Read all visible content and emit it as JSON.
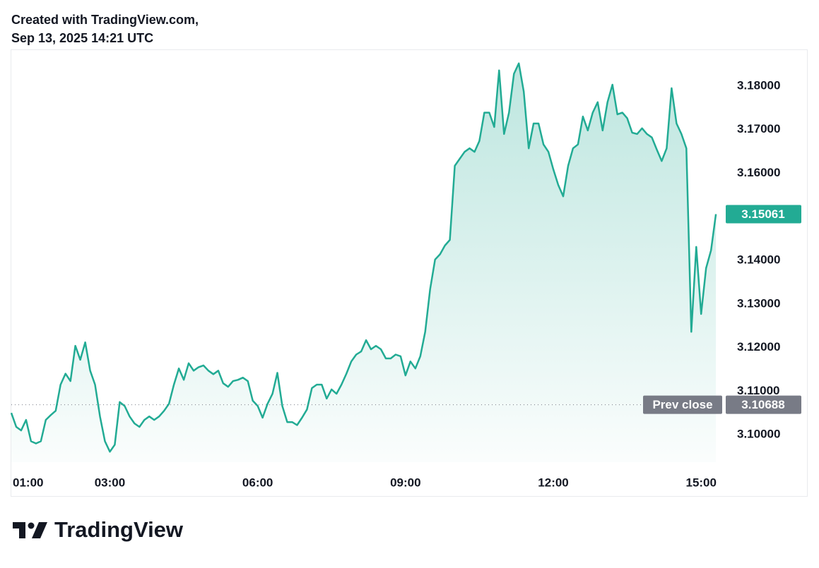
{
  "chart_data": {
    "type": "area",
    "title": "Created with TradingView.com,",
    "subtitle": "Sep 13, 2025 14:21 UTC",
    "color": "#22ab94",
    "x": [
      1.0,
      1.1,
      1.2,
      1.3,
      1.4,
      1.5,
      1.6,
      1.7,
      1.8,
      1.9,
      2.0,
      2.1,
      2.2,
      2.3,
      2.4,
      2.5,
      2.6,
      2.7,
      2.8,
      2.9,
      3.0,
      3.1,
      3.2,
      3.3,
      3.4,
      3.5,
      3.6,
      3.7,
      3.8,
      3.9,
      4.0,
      4.1,
      4.2,
      4.3,
      4.4,
      4.5,
      4.6,
      4.7,
      4.8,
      4.9,
      5.0,
      5.1,
      5.2,
      5.3,
      5.4,
      5.5,
      5.6,
      5.7,
      5.8,
      5.9,
      6.0,
      6.1,
      6.2,
      6.3,
      6.4,
      6.5,
      6.6,
      6.7,
      6.8,
      6.9,
      7.0,
      7.1,
      7.2,
      7.3,
      7.4,
      7.5,
      7.6,
      7.7,
      7.8,
      7.9,
      8.0,
      8.1,
      8.2,
      8.3,
      8.4,
      8.5,
      8.6,
      8.7,
      8.8,
      8.9,
      9.0,
      9.1,
      9.2,
      9.3,
      9.4,
      9.5,
      9.6,
      9.7,
      9.8,
      9.9,
      10.0,
      10.1,
      10.2,
      10.3,
      10.4,
      10.5,
      10.6,
      10.7,
      10.8,
      10.9,
      11.0,
      11.1,
      11.2,
      11.3,
      11.4,
      11.5,
      11.6,
      11.7,
      11.8,
      11.9,
      12.0,
      12.1,
      12.2,
      12.3,
      12.4,
      12.5,
      12.6,
      12.7,
      12.8,
      12.9,
      13.0,
      13.1,
      13.2,
      13.3,
      13.4,
      13.5,
      13.6,
      13.7,
      13.8,
      13.9,
      14.0,
      14.1,
      14.2,
      14.3,
      14.4,
      14.5,
      14.6,
      14.7,
      14.8,
      14.9,
      15.0,
      15.1,
      15.2,
      15.3
    ],
    "values": [
      3.105,
      3.1018,
      3.101,
      3.1034,
      3.0985,
      3.098,
      3.0985,
      3.1034,
      3.1045,
      3.1055,
      3.1115,
      3.114,
      3.1123,
      3.1204,
      3.1172,
      3.1212,
      3.1147,
      3.1115,
      3.1042,
      3.0985,
      3.0961,
      3.0977,
      3.1075,
      3.1066,
      3.1042,
      3.1026,
      3.1018,
      3.1034,
      3.1042,
      3.1034,
      3.1042,
      3.1055,
      3.1071,
      3.1115,
      3.1152,
      3.1126,
      3.1164,
      3.1147,
      3.1155,
      3.1159,
      3.1147,
      3.1139,
      3.1147,
      3.1118,
      3.111,
      3.1123,
      3.1126,
      3.1131,
      3.1123,
      3.1078,
      3.1066,
      3.1039,
      3.1071,
      3.1094,
      3.1142,
      3.1066,
      3.1029,
      3.1029,
      3.1022,
      3.1039,
      3.1058,
      3.1107,
      3.1115,
      3.1115,
      3.1083,
      3.1104,
      3.1094,
      3.1115,
      3.114,
      3.1168,
      3.1184,
      3.1191,
      3.1217,
      3.1196,
      3.1204,
      3.1196,
      3.1175,
      3.1175,
      3.1184,
      3.118,
      3.1136,
      3.1168,
      3.1152,
      3.118,
      3.1236,
      3.1334,
      3.1402,
      3.1414,
      3.1434,
      3.1447,
      3.1617,
      3.1633,
      3.1649,
      3.1657,
      3.1649,
      3.1674,
      3.1739,
      3.1739,
      3.1706,
      3.1836,
      3.169,
      3.1739,
      3.1828,
      3.1852,
      3.1787,
      3.1657,
      3.1714,
      3.1714,
      3.1666,
      3.1649,
      3.1609,
      3.1573,
      3.1547,
      3.1617,
      3.1657,
      3.1666,
      3.173,
      3.1698,
      3.1739,
      3.1763,
      3.1698,
      3.1763,
      3.1803,
      3.1735,
      3.1739,
      3.1726,
      3.1693,
      3.169,
      3.1703,
      3.169,
      3.1682,
      3.1654,
      3.1628,
      3.1657,
      3.1795,
      3.1714,
      3.169,
      3.1657,
      3.1236,
      3.1431,
      3.1277,
      3.1382,
      3.1423,
      3.15061
    ],
    "xlim": [
      1,
      15.47
    ],
    "xticks": [
      {
        "value": 1,
        "label": "01:00"
      },
      {
        "value": 3,
        "label": "03:00"
      },
      {
        "value": 6,
        "label": "06:00"
      },
      {
        "value": 9,
        "label": "09:00"
      },
      {
        "value": 12,
        "label": "12:00"
      },
      {
        "value": 15,
        "label": "15:00"
      }
    ],
    "ylim": [
      3.0929,
      3.1884
    ],
    "yticks": [
      {
        "value": 3.1,
        "label": "3.10000"
      },
      {
        "value": 3.11,
        "label": "3.11000"
      },
      {
        "value": 3.12,
        "label": "3.12000"
      },
      {
        "value": 3.13,
        "label": "3.13000"
      },
      {
        "value": 3.14,
        "label": "3.14000"
      },
      {
        "value": 3.15,
        "label": "3.15000"
      },
      {
        "value": 3.16,
        "label": "3.16000"
      },
      {
        "value": 3.17,
        "label": "3.17000"
      },
      {
        "value": 3.18,
        "label": "3.18000"
      }
    ],
    "grid": false,
    "prev_close": {
      "label": "Prev close",
      "value": 3.10688
    }
  },
  "footer": {
    "brand": "TradingView"
  }
}
